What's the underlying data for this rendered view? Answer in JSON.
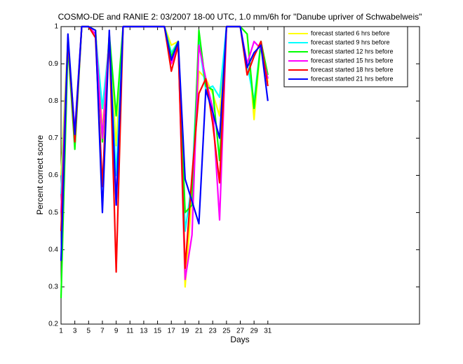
{
  "chart_data": {
    "type": "line",
    "title": "COSMO-DE and RANIE 2: 03/2007 18-00 UTC, 1.0 mm/6h for \"Danube upriver of Schwabelweis\"",
    "x_label": "Days",
    "y_label": "Percent correct score",
    "x": [
      1,
      2,
      3,
      4,
      5,
      6,
      7,
      8,
      9,
      10,
      11,
      12,
      13,
      14,
      15,
      16,
      17,
      18,
      19,
      20,
      21,
      22,
      23,
      24,
      25,
      26,
      27,
      28,
      29,
      30,
      31
    ],
    "xlim": [
      1,
      53
    ],
    "ylim": [
      0.2,
      1
    ],
    "xticks": [
      1,
      3,
      5,
      7,
      9,
      11,
      13,
      15,
      17,
      19,
      21,
      23,
      25,
      27,
      29,
      31
    ],
    "yticks": [
      0.2,
      0.3,
      0.4,
      0.5,
      0.6,
      0.7,
      0.8,
      0.9,
      1
    ],
    "legend_position": "upper right",
    "series": [
      {
        "name": "forecast started 6 hrs before",
        "color": "#ffff00",
        "values": [
          0.6,
          0.97,
          0.72,
          1,
          1,
          0.99,
          0.72,
          0.97,
          0.68,
          1,
          1,
          1,
          1,
          1,
          1,
          1,
          0.95,
          0.96,
          0.3,
          0.55,
          0.88,
          0.86,
          0.82,
          0.76,
          1,
          1,
          1,
          0.98,
          0.75,
          0.96,
          0.85
        ]
      },
      {
        "name": "forecast started 9 hrs before",
        "color": "#00ffff",
        "values": [
          0.55,
          0.96,
          0.7,
          1,
          1,
          0.98,
          0.78,
          0.96,
          0.6,
          1,
          1,
          1,
          1,
          1,
          1,
          1,
          0.93,
          0.96,
          0.45,
          0.58,
          0.96,
          0.83,
          0.84,
          0.81,
          1,
          1,
          1,
          0.9,
          0.8,
          0.96,
          0.86
        ]
      },
      {
        "name": "forecast started 12 hrs before",
        "color": "#00ff00",
        "values": [
          0.27,
          0.95,
          0.67,
          1,
          1,
          0.99,
          0.69,
          0.98,
          0.76,
          1,
          1,
          1,
          1,
          1,
          1,
          1,
          0.92,
          0.96,
          0.5,
          0.52,
          0.99,
          0.84,
          0.83,
          0.64,
          1,
          1,
          1,
          0.98,
          0.78,
          0.96,
          0.87
        ]
      },
      {
        "name": "forecast started 15 hrs before",
        "color": "#ff00ff",
        "values": [
          0.5,
          0.96,
          0.72,
          1,
          1,
          0.98,
          0.7,
          0.97,
          0.52,
          1,
          1,
          1,
          1,
          1,
          1,
          1,
          0.9,
          0.95,
          0.32,
          0.44,
          0.95,
          0.86,
          0.78,
          0.48,
          1,
          1,
          1,
          0.9,
          0.96,
          0.94,
          0.86
        ]
      },
      {
        "name": "forecast started 18 hrs before",
        "color": "#ff0000",
        "values": [
          0.45,
          0.97,
          0.69,
          1,
          1,
          0.97,
          0.57,
          0.98,
          0.34,
          1,
          1,
          1,
          1,
          1,
          1,
          1,
          0.88,
          0.95,
          0.35,
          0.6,
          0.82,
          0.86,
          0.74,
          0.58,
          1,
          1,
          1,
          0.87,
          0.92,
          0.96,
          0.84
        ]
      },
      {
        "name": "forecast started 21 hrs before",
        "color": "#0000ff",
        "values": [
          0.37,
          0.98,
          0.71,
          1,
          1,
          0.99,
          0.5,
          0.99,
          0.52,
          1,
          1,
          1,
          1,
          1,
          1,
          1,
          0.91,
          0.96,
          0.59,
          0.53,
          0.47,
          0.83,
          0.77,
          0.7,
          1,
          1,
          1,
          0.89,
          0.93,
          0.95,
          0.8
        ]
      }
    ]
  }
}
